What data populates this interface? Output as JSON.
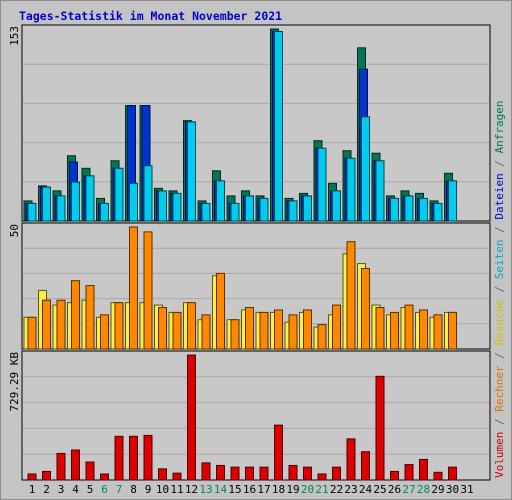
{
  "title": "Tages-Statistik im Monat November 2021",
  "y_labels": {
    "top": "153",
    "middle": "50",
    "bottom": "729.29 KB"
  },
  "right_legend": [
    {
      "text": "Volumen",
      "color": "#cc0000"
    },
    {
      "text": " / ",
      "color": "#666666"
    },
    {
      "text": "Rechner",
      "color": "#e07000"
    },
    {
      "text": " / ",
      "color": "#666666"
    },
    {
      "text": "Besuche",
      "color": "#d4c000"
    },
    {
      "text": " / ",
      "color": "#666666"
    },
    {
      "text": "Seiten",
      "color": "#00aacc"
    },
    {
      "text": " / ",
      "color": "#666666"
    },
    {
      "text": "Dateien",
      "color": "#0000cc"
    },
    {
      "text": " / ",
      "color": "#666666"
    },
    {
      "text": "Anfragen",
      "color": "#007755"
    }
  ],
  "chart_data": {
    "type": "bar",
    "x": [
      "1",
      "2",
      "3",
      "4",
      "5",
      "6",
      "7",
      "8",
      "9",
      "10",
      "11",
      "12",
      "13",
      "14",
      "15",
      "16",
      "17",
      "18",
      "19",
      "20",
      "21",
      "22",
      "23",
      "24",
      "25",
      "26",
      "27",
      "28",
      "29",
      "30",
      "31"
    ],
    "weekend_days": [
      "6",
      "7",
      "13",
      "14",
      "20",
      "21",
      "27",
      "28"
    ],
    "panels": [
      {
        "name": "requests",
        "ymax": 153,
        "series": [
          {
            "name": "Anfragen",
            "color": "#007755",
            "values": [
              16,
              28,
              24,
              52,
              42,
              18,
              48,
              92,
              92,
              26,
              24,
              80,
              16,
              40,
              20,
              24,
              20,
              153,
              18,
              22,
              64,
              30,
              56,
              138,
              54,
              20,
              24,
              22,
              16,
              38,
              0
            ]
          },
          {
            "name": "Dateien",
            "color": "#0033cc",
            "values": [
              14,
              27,
              20,
              47,
              36,
              14,
              42,
              92,
              92,
              24,
              22,
              79,
              14,
              32,
              14,
              20,
              18,
              151,
              16,
              20,
              58,
              24,
              50,
              121,
              48,
              18,
              20,
              18,
              14,
              32,
              0
            ]
          },
          {
            "name": "Seiten",
            "color": "#00ccee",
            "values": [
              14,
              27,
              20,
              31,
              36,
              14,
              42,
              30,
              44,
              24,
              22,
              79,
              14,
              32,
              14,
              20,
              18,
              151,
              16,
              20,
              58,
              24,
              50,
              83,
              48,
              18,
              20,
              18,
              14,
              32,
              0
            ]
          }
        ]
      },
      {
        "name": "visits",
        "ymax": 50,
        "series": [
          {
            "name": "Besuche",
            "color": "#ffee44",
            "values": [
              13,
              24,
              18,
              19,
              20,
              13,
              19,
              19,
              19,
              18,
              15,
              19,
              12,
              30,
              12,
              16,
              15,
              15,
              11,
              15,
              9,
              14,
              39,
              35,
              18,
              14,
              17,
              15,
              13,
              15,
              0
            ]
          },
          {
            "name": "Rechner",
            "color": "#ff8800",
            "values": [
              13,
              20,
              20,
              28,
              26,
              14,
              19,
              50,
              48,
              17,
              15,
              19,
              14,
              31,
              12,
              17,
              15,
              16,
              14,
              16,
              10,
              18,
              44,
              33,
              17,
              15,
              18,
              16,
              14,
              15,
              0
            ]
          }
        ]
      },
      {
        "name": "volume",
        "ymax": 729.29,
        "unit": "KB",
        "series": [
          {
            "name": "Volumen",
            "color": "#dd0000",
            "values": [
              35,
              50,
              155,
              175,
              105,
              35,
              255,
              255,
              260,
              65,
              40,
              729,
              100,
              85,
              75,
              75,
              75,
              320,
              85,
              75,
              35,
              75,
              240,
              165,
              605,
              50,
              90,
              120,
              45,
              75,
              0
            ]
          }
        ]
      }
    ]
  },
  "colors": {
    "background": "#c4c4c4",
    "plot_bg": "#c8c8c8",
    "grid": "#a8a8a8",
    "weekend_label": "#008855",
    "weekday_label": "#000000"
  }
}
